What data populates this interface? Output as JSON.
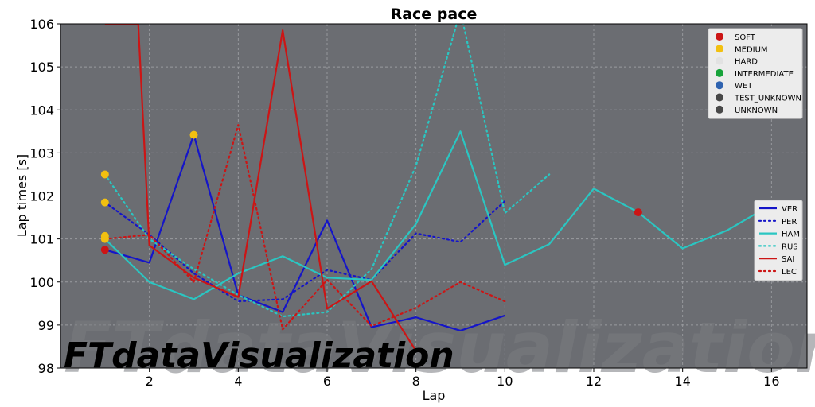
{
  "chart_data": {
    "type": "line",
    "title": "Race pace",
    "xlabel": "Lap",
    "ylabel": "Lap times [s]",
    "xlim": [
      0,
      16.8
    ],
    "ylim": [
      98,
      106
    ],
    "xticks": [
      2,
      4,
      6,
      8,
      10,
      12,
      14,
      16
    ],
    "yticks": [
      98,
      99,
      100,
      101,
      102,
      103,
      104,
      105,
      106
    ],
    "grid": true,
    "background": "#6b6d72",
    "series": [
      {
        "name": "VER",
        "color": "#1515c8",
        "dash": false,
        "x": [
          1,
          2,
          3,
          4,
          5,
          6,
          7,
          8,
          9,
          10
        ],
        "y": [
          100.75,
          100.45,
          103.42,
          99.7,
          99.3,
          101.43,
          98.95,
          99.18,
          98.87,
          99.22
        ]
      },
      {
        "name": "PER",
        "color": "#1515c8",
        "dash": true,
        "x": [
          1,
          2,
          3,
          4,
          5,
          6,
          7,
          8,
          9,
          10
        ],
        "y": [
          101.85,
          101.1,
          100.2,
          99.55,
          99.6,
          100.28,
          100.05,
          101.13,
          100.93,
          101.88
        ]
      },
      {
        "name": "HAM",
        "color": "#2ac6c2",
        "dash": false,
        "x": [
          1,
          2,
          3,
          4,
          5,
          6,
          7,
          8,
          9,
          10,
          11,
          12,
          13,
          14,
          15,
          16
        ],
        "y": [
          101.0,
          100.0,
          99.6,
          100.2,
          100.6,
          100.1,
          100.05,
          101.35,
          103.5,
          100.4,
          100.88,
          102.17,
          101.62,
          100.78,
          101.2,
          101.8
        ]
      },
      {
        "name": "RUS",
        "color": "#2ac6c2",
        "dash": true,
        "x": [
          1,
          2,
          3,
          4,
          5,
          6,
          7,
          8,
          9,
          10,
          11
        ],
        "y": [
          102.5,
          101.0,
          100.3,
          99.7,
          99.2,
          99.3,
          100.3,
          102.7,
          106.3,
          101.6,
          102.5
        ]
      },
      {
        "name": "SAI",
        "color": "#cc1515",
        "dash": false,
        "x": [
          1,
          1.75,
          2,
          3,
          4,
          5,
          6,
          7,
          8
        ],
        "y": [
          106.0,
          106.0,
          100.85,
          100.1,
          99.65,
          105.85,
          99.38,
          100.02,
          98.4
        ]
      },
      {
        "name": "LEC",
        "color": "#cc1515",
        "dash": true,
        "x": [
          1,
          2,
          3,
          4,
          5,
          6,
          7,
          8,
          9,
          10
        ],
        "y": [
          101.0,
          101.1,
          100.0,
          103.65,
          98.9,
          100.05,
          98.98,
          99.4,
          100.0,
          99.55
        ]
      }
    ],
    "compound_markers": [
      {
        "x": 1,
        "y": 100.75,
        "compound": "SOFT"
      },
      {
        "x": 1,
        "y": 101.0,
        "compound": "MEDIUM"
      },
      {
        "x": 1,
        "y": 101.07,
        "compound": "MEDIUM"
      },
      {
        "x": 1,
        "y": 101.85,
        "compound": "MEDIUM"
      },
      {
        "x": 1,
        "y": 102.5,
        "compound": "MEDIUM"
      },
      {
        "x": 3,
        "y": 103.42,
        "compound": "MEDIUM"
      },
      {
        "x": 13,
        "y": 101.62,
        "compound": "SOFT"
      }
    ],
    "compound_legend": {
      "placement": "top-right",
      "items": [
        {
          "label": "SOFT",
          "color": "#cc1515"
        },
        {
          "label": "MEDIUM",
          "color": "#f2c010"
        },
        {
          "label": "HARD",
          "color": "#e2e2e2"
        },
        {
          "label": "INTERMEDIATE",
          "color": "#17a33a"
        },
        {
          "label": "WET",
          "color": "#2f63b0"
        },
        {
          "label": "TEST_UNKNOWN",
          "color": "#484848"
        },
        {
          "label": "UNKNOWN",
          "color": "#484848"
        }
      ]
    },
    "driver_legend_placement": "center-right"
  },
  "watermark": "FTdataVisualization"
}
